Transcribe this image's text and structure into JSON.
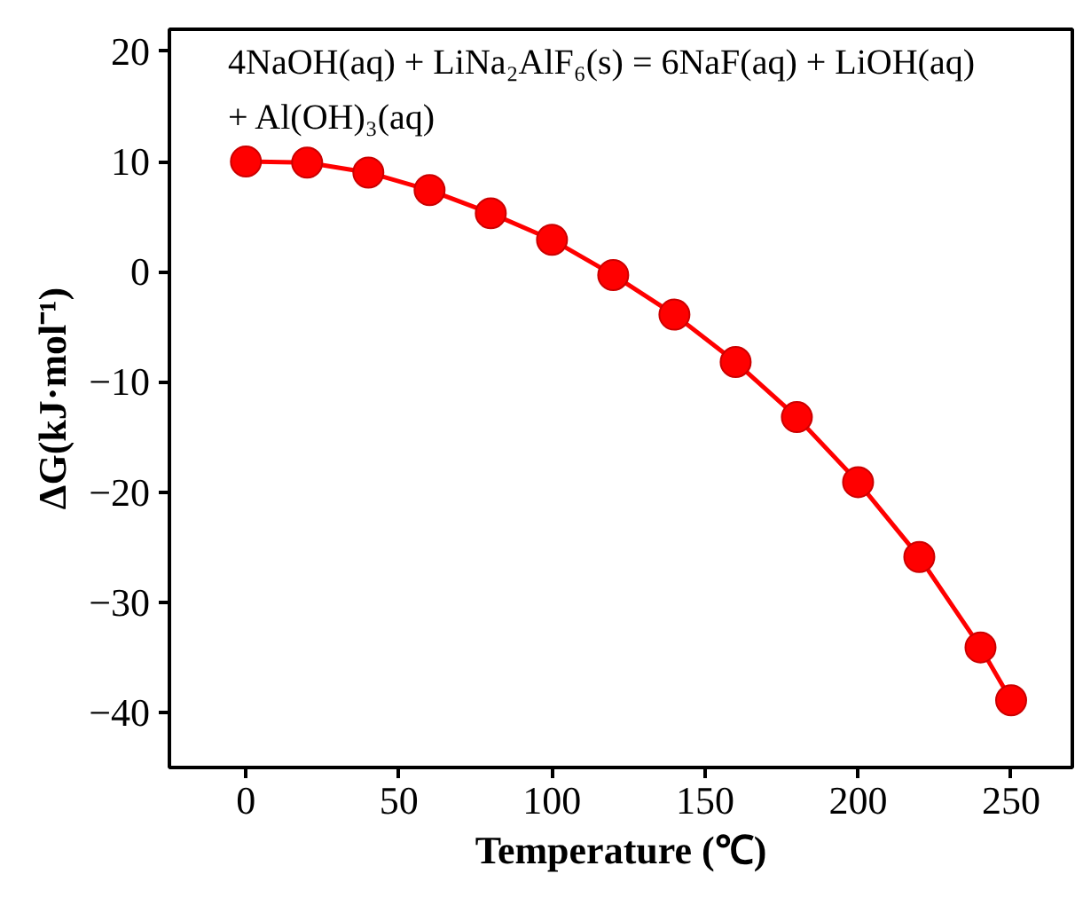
{
  "chart_data": {
    "type": "line",
    "xlabel": "Temperature (℃)",
    "ylabel": "ΔG(kJ·mol⁻¹)",
    "annotations": [
      "4NaOH(aq) + LiNa₂AlF₆(s) = 6NaF(aq) + LiOH(aq)\n+ Al(OH)₃(aq)"
    ],
    "x": [
      0,
      20,
      40,
      60,
      80,
      100,
      120,
      140,
      160,
      180,
      200,
      220,
      240,
      250
    ],
    "series": [
      {
        "color": "#ff0000",
        "values": [
          10,
          9.9,
          9.0,
          7.4,
          5.3,
          2.9,
          -0.3,
          -3.9,
          -8.2,
          -13.2,
          -19.1,
          -25.9,
          -34.1,
          -38.9
        ]
      }
    ],
    "xlim": [
      -25,
      270
    ],
    "ylim": [
      -45,
      22
    ],
    "xticks": [
      0,
      50,
      100,
      150,
      200,
      250
    ],
    "yticks": [
      -40,
      -30,
      -20,
      -10,
      0,
      10,
      20
    ],
    "marker": "circle",
    "line_style": "solid",
    "grid": false
  }
}
